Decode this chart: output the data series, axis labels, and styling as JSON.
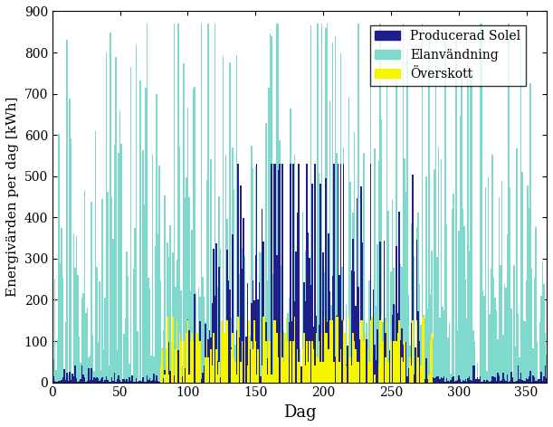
{
  "title": "",
  "xlabel": "Dag",
  "ylabel": "Energivärden per dag [kWh]",
  "xlim": [
    0,
    365
  ],
  "ylim": [
    0,
    900
  ],
  "xticks": [
    0,
    50,
    100,
    150,
    200,
    250,
    300,
    350
  ],
  "yticks": [
    0,
    100,
    200,
    300,
    400,
    500,
    600,
    700,
    800,
    900
  ],
  "color_solar": "#1f1f8a",
  "color_elan": "#7fd9cc",
  "color_overskott": "#f5f500",
  "legend_labels": [
    "Producerad Solel",
    "Elanvändning",
    "Överskott"
  ],
  "n_days": 365,
  "seed": 17
}
